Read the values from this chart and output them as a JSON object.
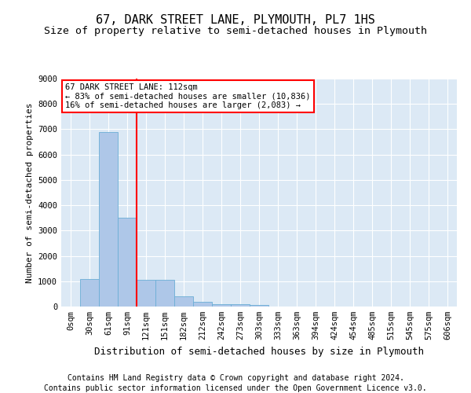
{
  "title": "67, DARK STREET LANE, PLYMOUTH, PL7 1HS",
  "subtitle": "Size of property relative to semi-detached houses in Plymouth",
  "xlabel": "Distribution of semi-detached houses by size in Plymouth",
  "ylabel": "Number of semi-detached properties",
  "bar_categories": [
    "0sqm",
    "30sqm",
    "61sqm",
    "91sqm",
    "121sqm",
    "151sqm",
    "182sqm",
    "212sqm",
    "242sqm",
    "273sqm",
    "303sqm",
    "333sqm",
    "363sqm",
    "394sqm",
    "424sqm",
    "454sqm",
    "485sqm",
    "515sqm",
    "545sqm",
    "575sqm",
    "606sqm"
  ],
  "bar_values": [
    0,
    1100,
    6900,
    3500,
    1050,
    1050,
    400,
    200,
    100,
    100,
    50,
    0,
    0,
    0,
    0,
    0,
    0,
    0,
    0,
    0,
    0
  ],
  "bar_color": "#aec7e8",
  "bar_edge_color": "#6baed6",
  "vline_color": "red",
  "vline_pos": 3.5,
  "ylim": [
    0,
    9000
  ],
  "yticks": [
    0,
    1000,
    2000,
    3000,
    4000,
    5000,
    6000,
    7000,
    8000,
    9000
  ],
  "annotation_title": "67 DARK STREET LANE: 112sqm",
  "annotation_line1": "← 83% of semi-detached houses are smaller (10,836)",
  "annotation_line2": "16% of semi-detached houses are larger (2,083) →",
  "annotation_box_color": "white",
  "annotation_box_edge": "red",
  "footer_line1": "Contains HM Land Registry data © Crown copyright and database right 2024.",
  "footer_line2": "Contains public sector information licensed under the Open Government Licence v3.0.",
  "bg_color": "#dce9f5",
  "title_fontsize": 11,
  "subtitle_fontsize": 9.5,
  "xlabel_fontsize": 9,
  "ylabel_fontsize": 8,
  "footer_fontsize": 7,
  "tick_fontsize": 7.5,
  "annotation_fontsize": 7.5
}
